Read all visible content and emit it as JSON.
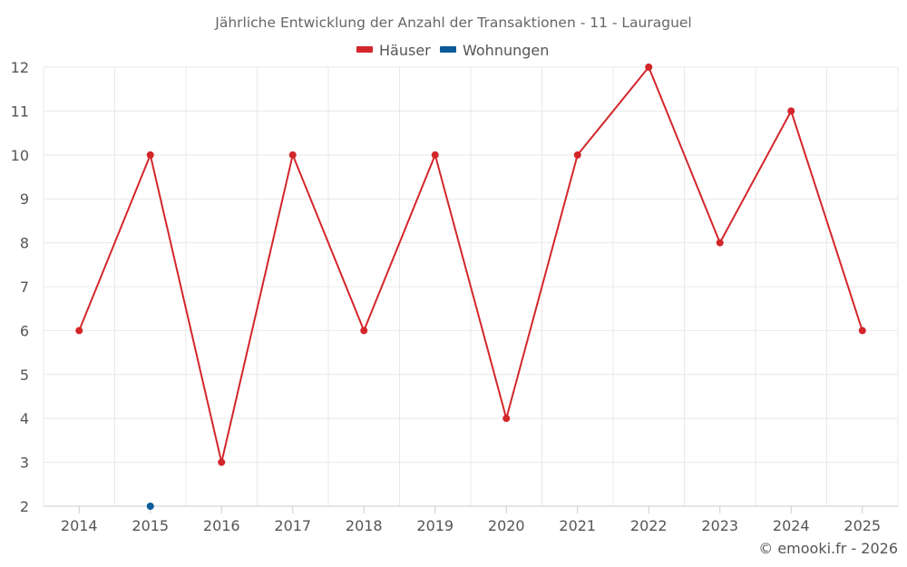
{
  "chart_data": {
    "type": "line",
    "title": "Jährliche Entwicklung der Anzahl der Transaktionen - 11 - Lauraguel",
    "categories": [
      "2014",
      "2015",
      "2016",
      "2017",
      "2018",
      "2019",
      "2020",
      "2021",
      "2022",
      "2023",
      "2024",
      "2025"
    ],
    "series": [
      {
        "name": "Häuser",
        "color": "#d3262b",
        "values": [
          6,
          10,
          3,
          10,
          6,
          10,
          4,
          10,
          12,
          8,
          11,
          6
        ]
      },
      {
        "name": "Wohnungen",
        "color": "#0b5c99",
        "values": [
          null,
          2,
          null,
          null,
          null,
          null,
          null,
          null,
          null,
          null,
          null,
          null
        ]
      }
    ],
    "ylim": [
      2,
      12
    ],
    "yticks": [
      2,
      3,
      4,
      5,
      6,
      7,
      8,
      9,
      10,
      11,
      12
    ],
    "xlabel": "",
    "ylabel": "",
    "grid": true,
    "legend_position": "top-center"
  },
  "credit": "© emooki.fr - 2026"
}
